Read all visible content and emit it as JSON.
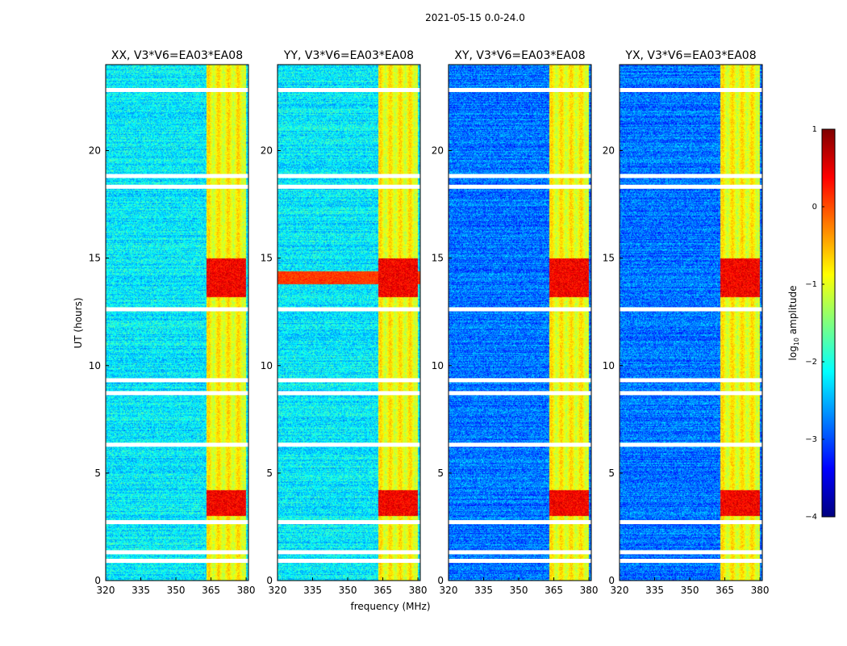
{
  "chart_data": {
    "type": "heatmap",
    "title": "2021-05-15 0.0-24.0",
    "xlabel": "frequency (MHz)",
    "ylabel": "UT (hours)",
    "xlim": [
      320,
      381
    ],
    "ylim": [
      0,
      24
    ],
    "xticks": [
      320,
      335,
      350,
      365,
      380
    ],
    "yticks": [
      0,
      5,
      10,
      15,
      20
    ],
    "xtick_labels": [
      "320",
      "335",
      "350",
      "365",
      "380"
    ],
    "ytick_labels": [
      "0",
      "5",
      "10",
      "15",
      "20"
    ],
    "panels": [
      {
        "title": "XX, V3*V6=EA03*EA08",
        "product": "XX"
      },
      {
        "title": "YY, V3*V6=EA03*EA08",
        "product": "YY"
      },
      {
        "title": "XY, V3*V6=EA03*EA08",
        "product": "XY"
      },
      {
        "title": "YX, V3*V6=EA03*EA08",
        "product": "YX"
      }
    ],
    "colorbar": {
      "label": "log10 amplitude",
      "label_main": "log",
      "label_sub": "10",
      "label_rest": " amplitude",
      "range": [
        -4,
        1
      ],
      "ticks": [
        1,
        0,
        -1,
        -2,
        -3,
        -4
      ],
      "tick_labels": [
        "1",
        "0",
        "−1",
        "−2",
        "−3",
        "−4"
      ],
      "colormap": "jet"
    },
    "features": {
      "rfi_band_mhz": [
        363,
        380
      ],
      "strong_rfi_hours": [
        [
          13.2,
          15.0
        ],
        [
          3.0,
          4.2
        ]
      ],
      "flagged_gaps_hours": [
        0.9,
        1.3,
        2.7,
        6.3,
        8.7,
        9.3,
        12.6,
        18.3,
        18.8,
        22.8
      ]
    }
  },
  "colors": {
    "jet_stops": [
      "#00007f",
      "#0000ff",
      "#007fff",
      "#00ffff",
      "#7fff7f",
      "#ffff00",
      "#ff7f00",
      "#ff0000",
      "#7f0000"
    ]
  }
}
